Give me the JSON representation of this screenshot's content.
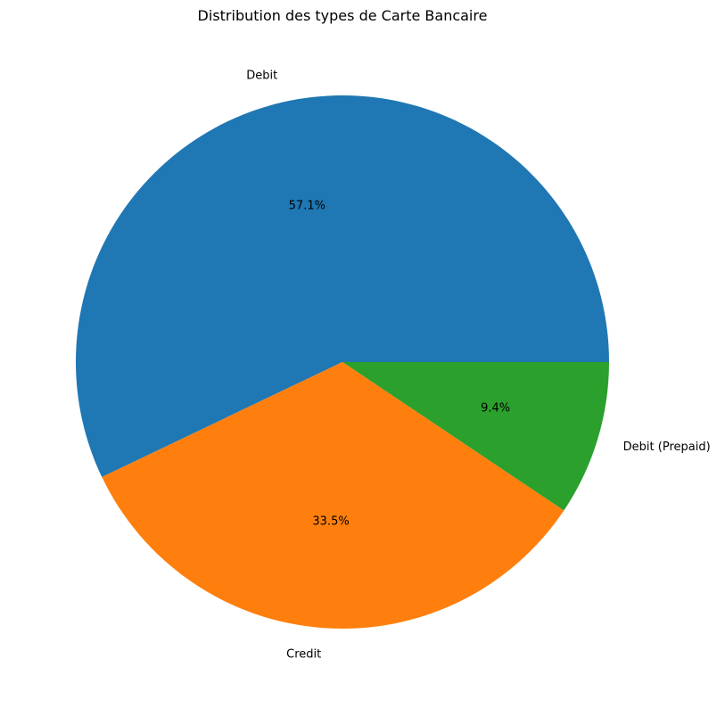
{
  "chart_data": {
    "type": "pie",
    "title": "Distribution des types de Carte Bancaire",
    "slices": [
      {
        "label": "Debit",
        "value": 57.1,
        "pct_label": "57.1%",
        "color": "#1f77b4"
      },
      {
        "label": "Credit",
        "value": 33.5,
        "pct_label": "33.5%",
        "color": "#ff7f0e"
      },
      {
        "label": "Debit (Prepaid)",
        "value": 9.4,
        "pct_label": "9.4%",
        "color": "#2ca02c"
      }
    ],
    "start_angle_deg": 0,
    "direction": "counterclockwise",
    "legend": "none"
  }
}
